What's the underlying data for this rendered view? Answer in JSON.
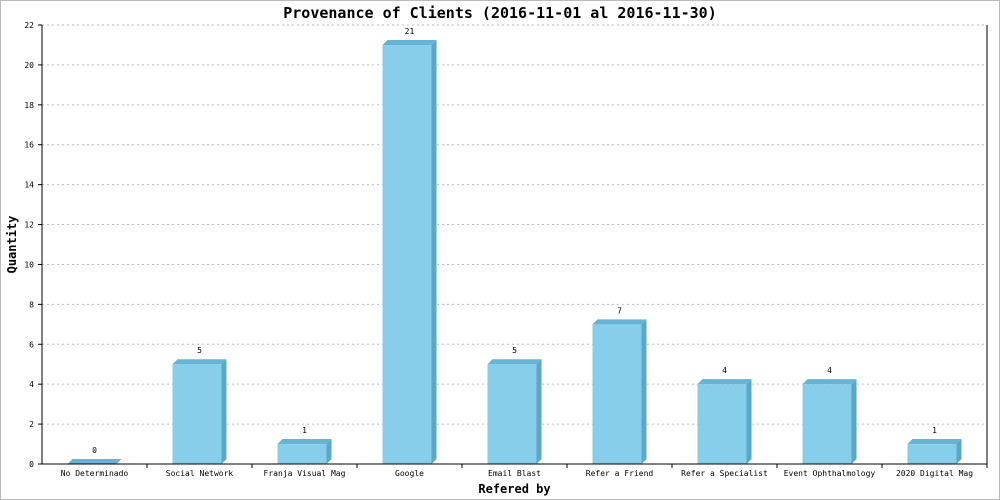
{
  "chart_data": {
    "type": "bar",
    "title": "Provenance of Clients (2016-11-01 al 2016-11-30)",
    "xlabel": "Refered by",
    "ylabel": "Quantity",
    "categories": [
      "No Determinado",
      "Social Network",
      "Franja Visual Mag",
      "Google",
      "Email Blast",
      "Refer a Friend",
      "Refer a Specialist",
      "Event Ophthalmology",
      "2020 Digital Mag"
    ],
    "values": [
      0,
      5,
      1,
      21,
      5,
      7,
      4,
      4,
      1
    ],
    "ylim": [
      0,
      22
    ],
    "yticks": [
      0,
      2,
      4,
      6,
      8,
      10,
      12,
      14,
      16,
      18,
      20,
      22
    ],
    "grid": true,
    "bar_color": "#87ceeb",
    "bar_side_color": "#5aa7c6",
    "bar_top_color": "#66b3d2"
  }
}
